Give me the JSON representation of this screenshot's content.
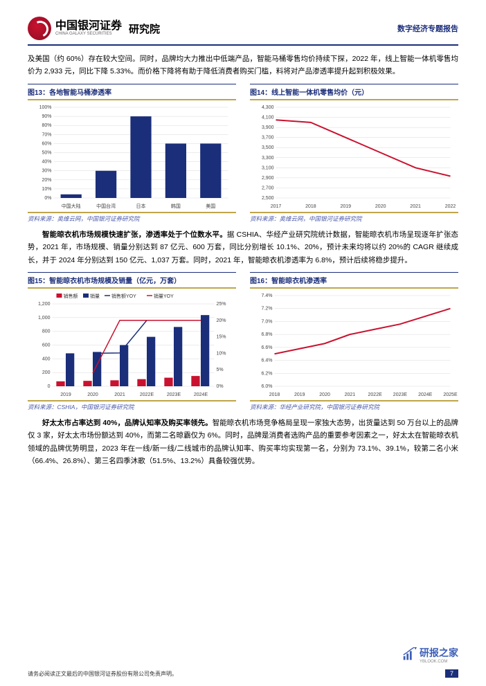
{
  "header": {
    "logo_cn": "中国银河证券",
    "logo_en": "CHINA GALAXY SECURITIES",
    "logo_suffix": "研究院",
    "right_text": "数字经济专题报告"
  },
  "para1": "及美国（约 60%）存在较大空间。同时，品牌均大力推出中低端产品，智能马桶零售均价持续下探，2022 年，线上智能一体机零售均价为 2,933 元，同比下降 5.33%。而价格下降将有助于降低消费者购买门槛，料将对产品渗透率提升起到积极效果。",
  "chart13": {
    "title": "图13：各地智能马桶渗透率",
    "type": "bar",
    "categories": [
      "中国大陆",
      "中国台湾",
      "日本",
      "韩国",
      "美国"
    ],
    "values": [
      4,
      30,
      90,
      60,
      60
    ],
    "bar_color": "#1b2e7a",
    "background_color": "#ffffff",
    "grid_color": "#d9d9d9",
    "ylim": [
      0,
      100
    ],
    "ytick_step": 10,
    "y_format": "percent",
    "label_fontsize": 7,
    "source": "资料来源：奥维云网，中国银河证券研究院"
  },
  "chart14": {
    "title": "图14：线上智能一体机零售均价（元）",
    "type": "line",
    "categories": [
      "2017",
      "2018",
      "2019",
      "2020",
      "2021",
      "2022"
    ],
    "values": [
      4050,
      4000,
      3700,
      3400,
      3100,
      2933
    ],
    "line_color": "#c9122f",
    "background_color": "#ffffff",
    "grid_color": "#d9d9d9",
    "ylim": [
      2500,
      4300
    ],
    "ytick_step": 200,
    "label_fontsize": 7,
    "line_width": 2,
    "source": "资料来源：奥维云网，中国银河证券研究院"
  },
  "para2_bold": "智能晾衣机市场规模快速扩张，渗透率处于个位数水平。",
  "para2_rest": "据 CSHIA、华经产业研究院统计数据，智能晾衣机市场呈现逐年扩张态势，2021 年，市场规模、销量分别达到 87 亿元、600 万套，同比分别增长 10.1%、20%，预计未来均将以约 20%的 CAGR 继续成长，并于 2024 年分别达到 150 亿元、1,037 万套。同时，2021 年，智能晾衣机渗透率为 6.8%，预计后续将稳步提升。",
  "chart15": {
    "title": "图15：智能晾衣机市场规模及销量（亿元，万套）",
    "type": "combo",
    "categories": [
      "2019",
      "2020",
      "2021",
      "2022E",
      "2023E",
      "2024E"
    ],
    "series": [
      {
        "name": "销售额",
        "type": "bar",
        "color": "#c9122f",
        "values": [
          72,
          79,
          87,
          104,
          125,
          150
        ]
      },
      {
        "name": "销量",
        "type": "bar",
        "color": "#1b2e7a",
        "values": [
          480,
          500,
          600,
          720,
          864,
          1037
        ]
      },
      {
        "name": "销售额YOY",
        "type": "line",
        "color": "#1b2e7a",
        "values": [
          null,
          0.1,
          0.101,
          0.2,
          0.2,
          0.2
        ],
        "axis": "y2"
      },
      {
        "name": "销量YOY",
        "type": "line",
        "color": "#c9122f",
        "values": [
          null,
          0.04,
          0.2,
          0.2,
          0.2,
          0.2
        ],
        "axis": "y2"
      }
    ],
    "ylim": [
      0,
      1200
    ],
    "ytick_step": 200,
    "y2lim": [
      0,
      0.25
    ],
    "y2tick_step": 0.05,
    "y2_format": "percent",
    "grid_color": "#d9d9d9",
    "label_fontsize": 7,
    "legend_position": "top",
    "source": "资料来源：CSHIA，中国银河证券研究院"
  },
  "chart16": {
    "title": "图16：智能晾衣机渗透率",
    "type": "line",
    "categories": [
      "2018",
      "2019",
      "2020",
      "2021",
      "2022E",
      "2023E",
      "2024E",
      "2025E"
    ],
    "values": [
      6.5,
      6.58,
      6.66,
      6.8,
      6.88,
      6.96,
      7.08,
      7.2
    ],
    "line_color": "#c9122f",
    "background_color": "#ffffff",
    "grid_color": "#d9d9d9",
    "ylim": [
      6.0,
      7.4
    ],
    "ytick_step": 0.2,
    "y_format": "percent1",
    "label_fontsize": 7,
    "line_width": 2,
    "source": "资料来源：华经产业研究院，中国银河证券研究院"
  },
  "para3_bold": "好太太市占率达到 40%，品牌认知率及购买率领先。",
  "para3_rest": "智能晾衣机市场竞争格局呈现一家独大态势，出货量达到 50 万台以上的品牌仅 3 家，好太太市场份额达到 40%，而第二名晾霸仅为 6%。同时，品牌是消费者选购产品的重要参考因素之一，好太太在智能晾衣机领域的品牌优势明显，2023 年在一线/新一线/二线城市的品牌认知率、购买率均实现第一名，分别为 73.1%、39.1%，较第二名小米（66.4%、26.8%）、第三名四季沐歌（51.5%、13.2%）具备较强优势。",
  "footer": {
    "disclaimer": "请务必阅读正文最后的中国银河证券股份有限公司免责声明。",
    "page_num": "7"
  },
  "watermark": {
    "name": "研报之家",
    "sub": "YBLOOK.COM"
  }
}
